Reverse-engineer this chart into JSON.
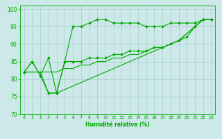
{
  "xlabel": "Humidité relative (%)",
  "bg_color": "#cce8e8",
  "grid_color": "#aacccc",
  "line_color": "#00aa00",
  "xlim": [
    -0.5,
    23.5
  ],
  "ylim": [
    70,
    101
  ],
  "yticks": [
    70,
    75,
    80,
    85,
    90,
    95,
    100
  ],
  "xticks": [
    0,
    1,
    2,
    3,
    4,
    5,
    6,
    7,
    8,
    9,
    10,
    11,
    12,
    13,
    14,
    15,
    16,
    17,
    18,
    19,
    20,
    21,
    22,
    23
  ],
  "series1_x": [
    0,
    1,
    2,
    3,
    4,
    5,
    6,
    7,
    8,
    9,
    10,
    11,
    12,
    13,
    14,
    15,
    16,
    17,
    18,
    19,
    20,
    21,
    22,
    23
  ],
  "series1_y": [
    82,
    85,
    81,
    86,
    76,
    85,
    95,
    95,
    96,
    97,
    97,
    96,
    96,
    96,
    96,
    95,
    95,
    95,
    96,
    96,
    96,
    96,
    97,
    97
  ],
  "series2_x": [
    0,
    1,
    2,
    3,
    4,
    5,
    6,
    7,
    8,
    9,
    10,
    11,
    12,
    13,
    14,
    15,
    16,
    17,
    18,
    19,
    20,
    21,
    22,
    23
  ],
  "series2_y": [
    82,
    85,
    81,
    76,
    76,
    85,
    85,
    85,
    86,
    86,
    86,
    87,
    87,
    88,
    88,
    88,
    89,
    89,
    90,
    91,
    92,
    95,
    97,
    97
  ],
  "series3_x": [
    0,
    1,
    2,
    3,
    4,
    5,
    6,
    7,
    8,
    9,
    10,
    11,
    12,
    13,
    14,
    15,
    16,
    17,
    18,
    19,
    20,
    21,
    22,
    23
  ],
  "series3_y": [
    82,
    82,
    82,
    82,
    82,
    83,
    83,
    84,
    84,
    85,
    85,
    86,
    86,
    87,
    87,
    88,
    89,
    89,
    90,
    91,
    93,
    95,
    97,
    97
  ],
  "series4_x": [
    0,
    1,
    2,
    3,
    4,
    5,
    6,
    7,
    8,
    9,
    10,
    11,
    12,
    13,
    14,
    15,
    16,
    17,
    18,
    19,
    20,
    21,
    22,
    23
  ],
  "series4_y": [
    82,
    82,
    82,
    76,
    76,
    77,
    78,
    79,
    80,
    81,
    82,
    83,
    84,
    85,
    86,
    87,
    88,
    89,
    90,
    91,
    93,
    95,
    97,
    97
  ]
}
